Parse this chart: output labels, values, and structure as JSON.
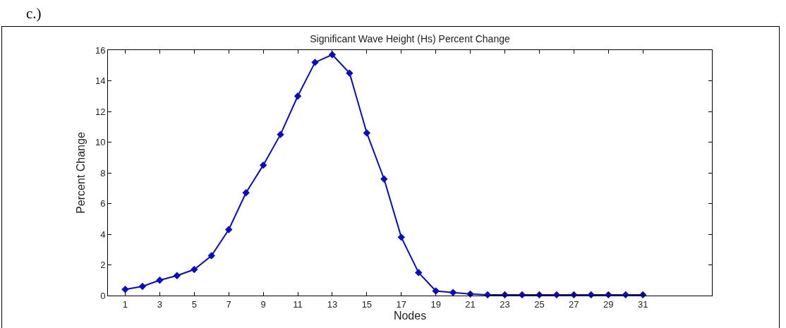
{
  "chart_data": {
    "type": "line",
    "title": "Significant Wave Height (Hs) Percent Change",
    "xlabel": "Nodes",
    "ylabel": "Percent Change",
    "annotations": [
      "c.)"
    ],
    "x": [
      1,
      2,
      3,
      4,
      5,
      6,
      7,
      8,
      9,
      10,
      11,
      12,
      13,
      14,
      15,
      16,
      17,
      18,
      19,
      20,
      21,
      22,
      23,
      24,
      25,
      26,
      27,
      28,
      29,
      30,
      31
    ],
    "series": [
      {
        "color": "#0a0ac8",
        "values": [
          0.4,
          0.6,
          1.0,
          1.3,
          1.7,
          2.6,
          4.3,
          6.7,
          8.5,
          10.5,
          13.0,
          15.2,
          15.7,
          14.5,
          10.6,
          7.6,
          3.8,
          1.5,
          0.3,
          0.2,
          0.1,
          0.05,
          0.05,
          0.05,
          0.05,
          0.05,
          0.05,
          0.05,
          0.05,
          0.05,
          0.05
        ]
      }
    ],
    "xlim": [
      0,
      35
    ],
    "xticks": [
      1,
      3,
      5,
      7,
      9,
      11,
      13,
      15,
      17,
      19,
      21,
      23,
      25,
      27,
      29,
      31
    ],
    "ylim": [
      0,
      16
    ],
    "yticks": [
      0,
      2,
      4,
      6,
      8,
      10,
      12,
      14,
      16
    ],
    "grid": false,
    "marker": "diamond",
    "line_style": "solid"
  }
}
